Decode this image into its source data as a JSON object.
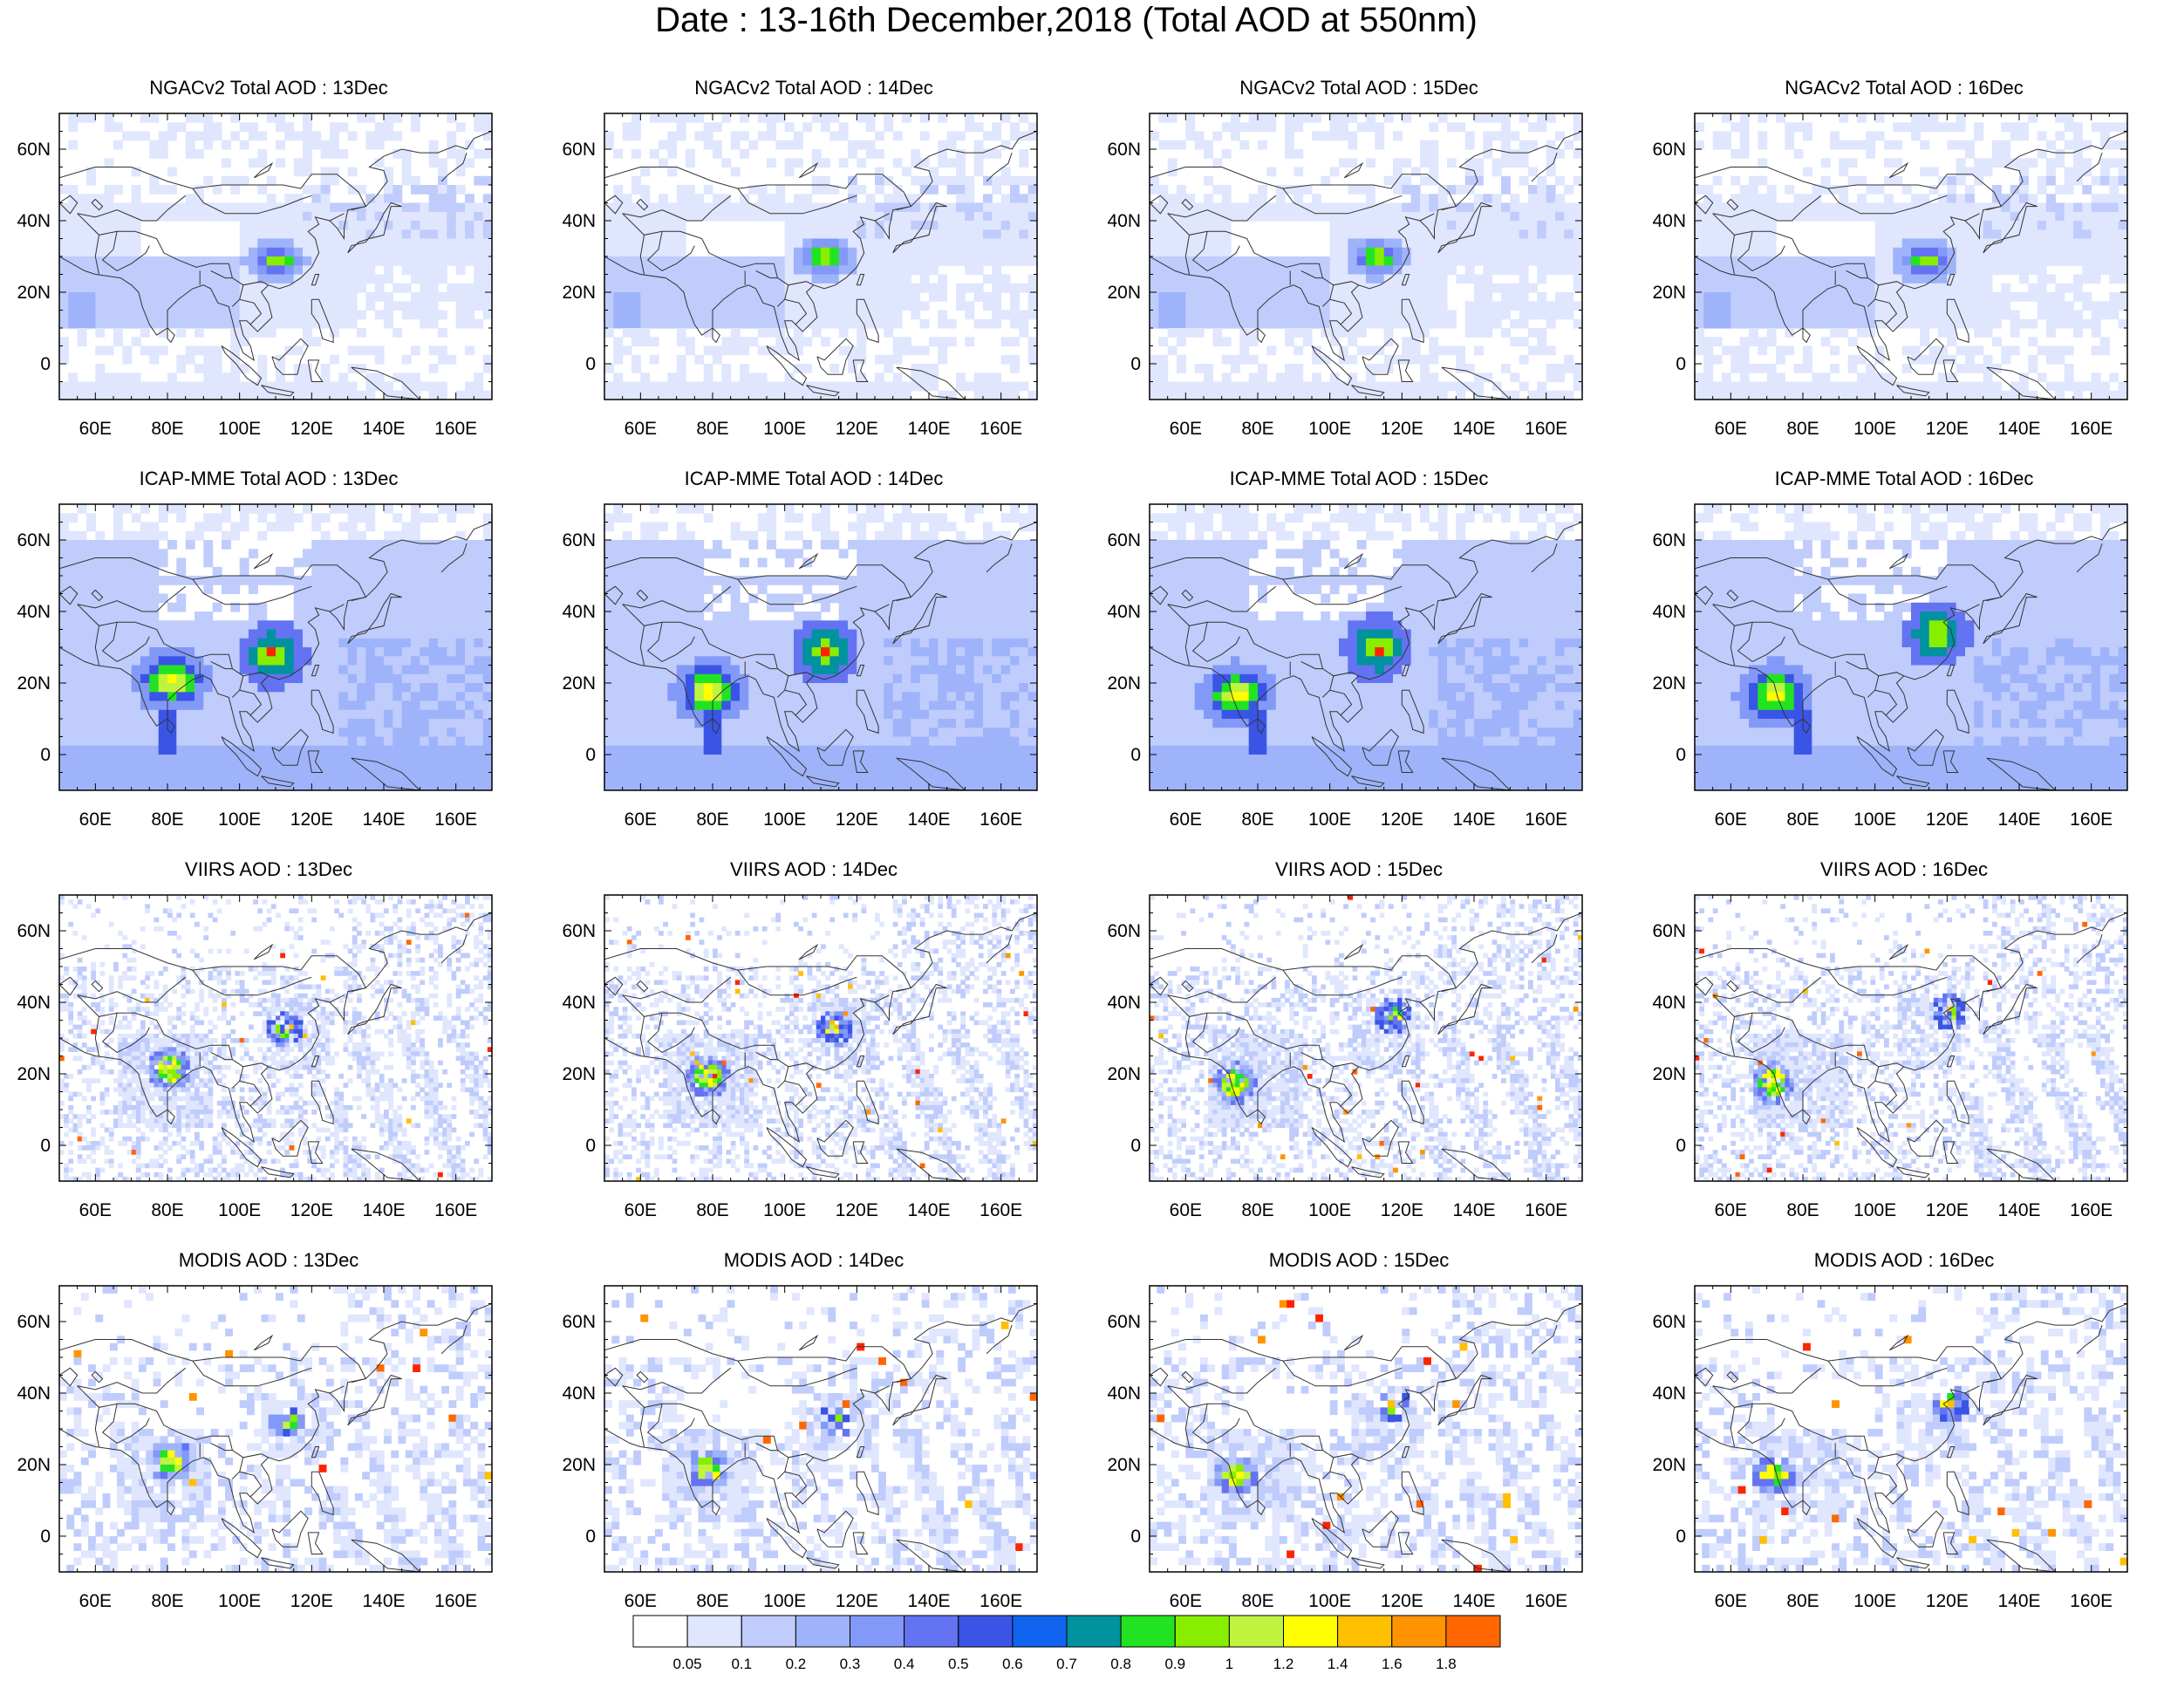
{
  "title": "Date : 13-16th December,2018 (Total AOD at 550nm)",
  "rows": [
    {
      "key": "ngac",
      "titles": [
        "NGACv2 Total AOD : 13Dec",
        "NGACv2 Total AOD : 14Dec",
        "NGACv2 Total AOD : 15Dec",
        "NGACv2 Total AOD : 16Dec"
      ]
    },
    {
      "key": "icap",
      "titles": [
        "ICAP-MME Total AOD : 13Dec",
        "ICAP-MME Total AOD : 14Dec",
        "ICAP-MME Total AOD : 15Dec",
        "ICAP-MME Total AOD : 16Dec"
      ]
    },
    {
      "key": "viirs",
      "titles": [
        "VIIRS AOD : 13Dec",
        "VIIRS AOD : 14Dec",
        "VIIRS AOD : 15Dec",
        "VIIRS AOD : 16Dec"
      ]
    },
    {
      "key": "modis",
      "titles": [
        "MODIS AOD : 13Dec",
        "MODIS AOD : 14Dec",
        "MODIS AOD : 15Dec",
        "MODIS AOD : 16Dec"
      ]
    }
  ],
  "map": {
    "lon_range": [
      50,
      170
    ],
    "lat_range": [
      -10,
      70
    ],
    "x_ticks": [
      "60E",
      "80E",
      "100E",
      "120E",
      "140E",
      "160E"
    ],
    "x_tick_values": [
      60,
      80,
      100,
      120,
      140,
      160
    ],
    "y_ticks": [
      "60N",
      "40N",
      "20N",
      "0"
    ],
    "y_tick_values": [
      60,
      40,
      20,
      0
    ]
  },
  "colorbar": {
    "labels": [
      "0.05",
      "0.1",
      "0.2",
      "0.3",
      "0.4",
      "0.5",
      "0.6",
      "0.7",
      "0.8",
      "0.9",
      "1",
      "1.2",
      "1.4",
      "1.6",
      "1.8"
    ],
    "colors": [
      "#ffffff",
      "#dfe6fe",
      "#bfccfc",
      "#9fb3fb",
      "#8299f7",
      "#6373f2",
      "#3a55e6",
      "#1164f0",
      "#00929e",
      "#22e322",
      "#88ee00",
      "#c0f33d",
      "#ffff00",
      "#ffc000",
      "#ff9400",
      "#ff6600",
      "#ff2400"
    ]
  }
}
